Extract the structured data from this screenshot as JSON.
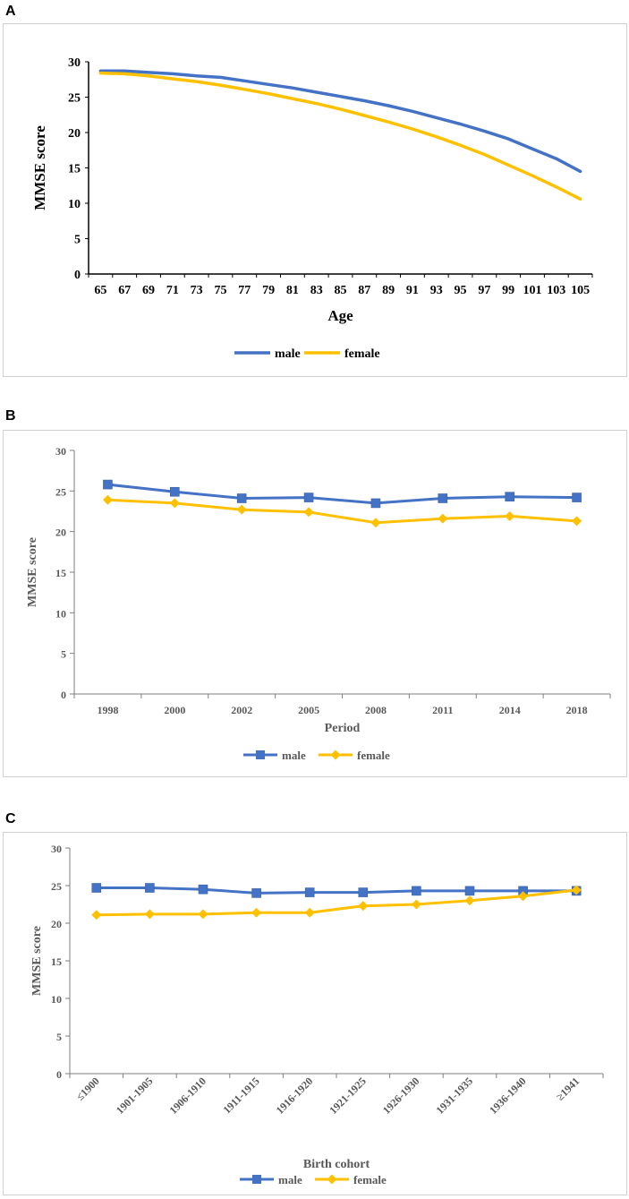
{
  "panels": [
    {
      "label": "A"
    },
    {
      "label": "B"
    },
    {
      "label": "C"
    }
  ],
  "colors": {
    "male": "#4472C4",
    "female": "#FFC000",
    "axis": "#7f7f7f",
    "text": "#595959"
  },
  "chart_data": [
    {
      "type": "line",
      "title": "",
      "xlabel": "Age",
      "ylabel": "MMSE score",
      "ylim": [
        0,
        30
      ],
      "yticks": [
        "0",
        "5",
        "10",
        "15",
        "20",
        "25",
        "30"
      ],
      "categories": [
        "65",
        "67",
        "69",
        "71",
        "73",
        "75",
        "77",
        "79",
        "81",
        "83",
        "85",
        "87",
        "89",
        "91",
        "93",
        "95",
        "97",
        "99",
        "101",
        "103",
        "105"
      ],
      "series": [
        {
          "name": "male",
          "marker": "none",
          "values": [
            28.7,
            28.7,
            28.5,
            28.3,
            28.0,
            27.8,
            27.3,
            26.8,
            26.3,
            25.7,
            25.1,
            24.5,
            23.8,
            23.0,
            22.1,
            21.2,
            20.2,
            19.1,
            17.7,
            16.3,
            14.5
          ]
        },
        {
          "name": "female",
          "marker": "none",
          "values": [
            28.4,
            28.3,
            28.0,
            27.6,
            27.2,
            26.7,
            26.1,
            25.5,
            24.8,
            24.1,
            23.3,
            22.4,
            21.5,
            20.5,
            19.4,
            18.2,
            16.9,
            15.4,
            13.9,
            12.3,
            10.6
          ]
        }
      ],
      "legend": {
        "position": "bottom",
        "items": [
          "male",
          "female"
        ]
      }
    },
    {
      "type": "line",
      "title": "",
      "xlabel": "Period",
      "ylabel": "MMSE score",
      "ylim": [
        0,
        30
      ],
      "yticks": [
        "0",
        "5",
        "10",
        "15",
        "20",
        "25",
        "30"
      ],
      "categories": [
        "1998",
        "2000",
        "2002",
        "2005",
        "2008",
        "2011",
        "2014",
        "2018"
      ],
      "series": [
        {
          "name": "male",
          "marker": "square",
          "values": [
            25.8,
            24.9,
            24.1,
            24.2,
            23.5,
            24.1,
            24.3,
            24.2
          ]
        },
        {
          "name": "female",
          "marker": "diamond",
          "values": [
            23.9,
            23.5,
            22.7,
            22.4,
            21.1,
            21.6,
            21.9,
            21.3
          ]
        }
      ],
      "legend": {
        "position": "bottom",
        "items": [
          "male",
          "female"
        ]
      }
    },
    {
      "type": "line",
      "title": "",
      "xlabel": "Birth cohort",
      "ylabel": "MMSE score",
      "ylim": [
        0,
        30
      ],
      "yticks": [
        "0",
        "5",
        "10",
        "15",
        "20",
        "25",
        "30"
      ],
      "categories": [
        "≤1900",
        "1901-1905",
        "1906-1910",
        "1911-1915",
        "1916-1920",
        "1921-1925",
        "1926-1930",
        "1931-1935",
        "1936-1940",
        "≥1941"
      ],
      "series": [
        {
          "name": "male",
          "marker": "square",
          "values": [
            24.7,
            24.7,
            24.5,
            24.0,
            24.1,
            24.1,
            24.3,
            24.3,
            24.3,
            24.3
          ]
        },
        {
          "name": "female",
          "marker": "diamond",
          "values": [
            21.1,
            21.2,
            21.2,
            21.4,
            21.4,
            22.3,
            22.5,
            23.0,
            23.6,
            24.4
          ]
        }
      ],
      "legend": {
        "position": "bottom",
        "items": [
          "male",
          "female"
        ]
      }
    }
  ]
}
